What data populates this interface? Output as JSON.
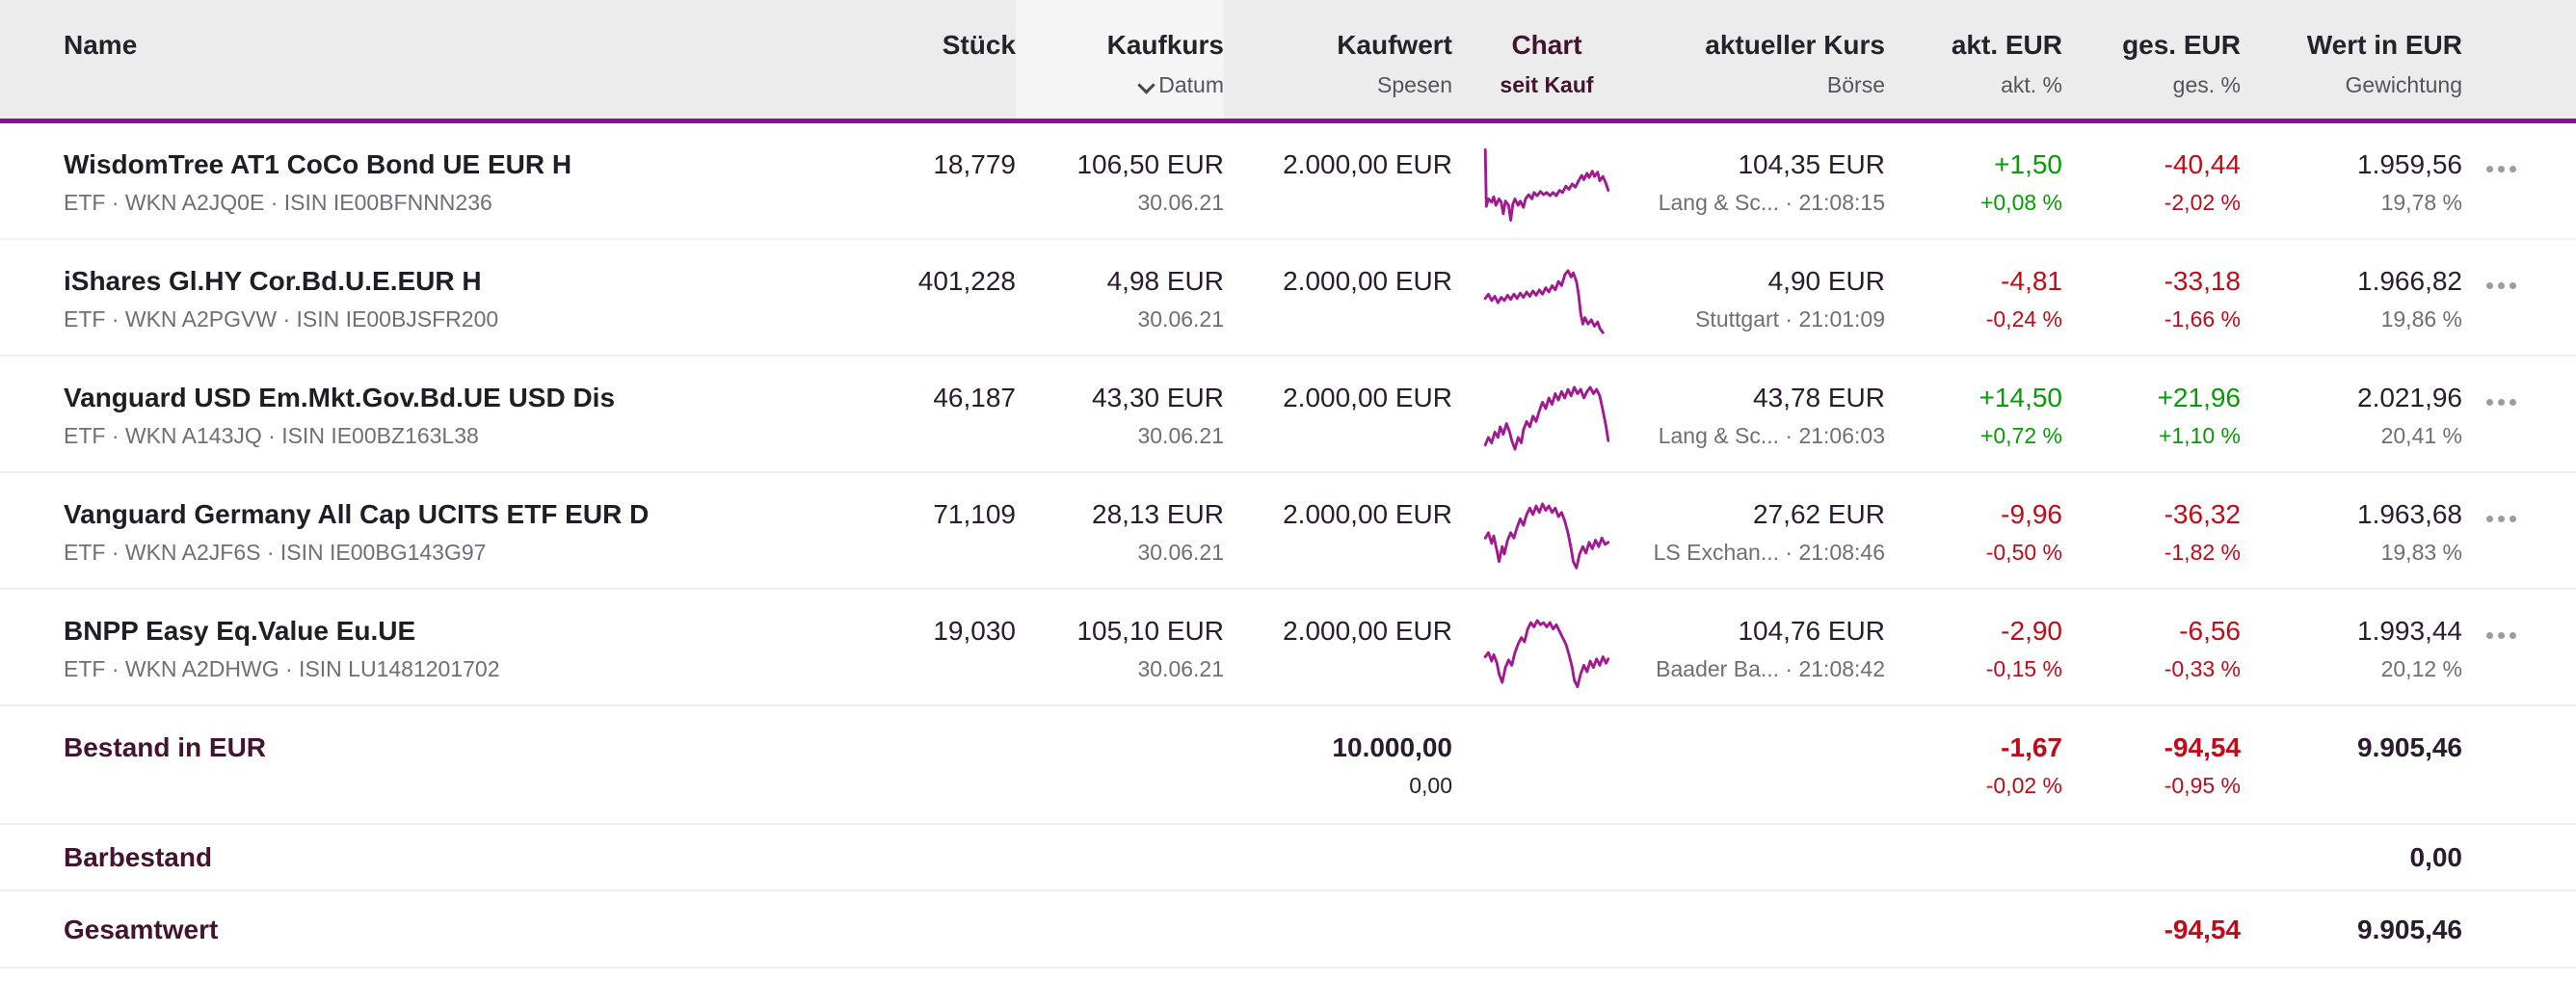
{
  "colors": {
    "header_bg": "#ececec",
    "sorted_column_bg": "#f5f5f5",
    "header_underline": "#8d1094",
    "sparkline": "#a2188f",
    "positive": "#079b07",
    "negative": "#c00b18",
    "accent_dark": "#421430"
  },
  "header": {
    "name": {
      "label": "Name"
    },
    "stueck": {
      "label": "Stück"
    },
    "kaufkurs": {
      "label": "Kaufkurs",
      "sub": "Datum"
    },
    "kaufwert": {
      "label": "Kaufwert",
      "sub": "Spesen"
    },
    "chart": {
      "label": "Chart",
      "sub": "seit Kauf"
    },
    "kurs": {
      "label": "aktueller Kurs",
      "sub": "Börse"
    },
    "akt": {
      "label": "akt. EUR",
      "sub": "akt. %"
    },
    "ges": {
      "label": "ges. EUR",
      "sub": "ges. %"
    },
    "wert": {
      "label": "Wert in EUR",
      "sub": "Gewichtung"
    }
  },
  "rows": [
    {
      "name": "WisdomTree AT1 CoCo Bond UE EUR H",
      "info": "ETF · WKN A2JQ0E · ISIN IE00BFNNN236",
      "stueck": "18,779",
      "kaufkurs": "106,50 EUR",
      "kaufdatum": "30.06.21",
      "kaufwert": "2.000,00 EUR",
      "kurs": "104,35 EUR",
      "boerse": "Lang & Sc... · 21:08:15",
      "akt_eur": "+1,50",
      "akt_pct": "+0,08 %",
      "akt_trend": "up",
      "ges_eur": "-40,44",
      "ges_pct": "-2,02 %",
      "ges_trend": "down",
      "wert": "1.959,56",
      "gewichtung": "19,78 %",
      "sparkline": [
        [
          2,
          4
        ],
        [
          3,
          57
        ],
        [
          5,
          50
        ],
        [
          8,
          53
        ],
        [
          10,
          48
        ],
        [
          12,
          56
        ],
        [
          15,
          50
        ],
        [
          17,
          53
        ],
        [
          19,
          64
        ],
        [
          21,
          52
        ],
        [
          24,
          56
        ],
        [
          26,
          70
        ],
        [
          28,
          55
        ],
        [
          30,
          50
        ],
        [
          33,
          56
        ],
        [
          35,
          52
        ],
        [
          38,
          58
        ],
        [
          40,
          50
        ],
        [
          43,
          46
        ],
        [
          46,
          50
        ],
        [
          48,
          44
        ],
        [
          51,
          47
        ],
        [
          54,
          43
        ],
        [
          57,
          46
        ],
        [
          60,
          44
        ],
        [
          63,
          47
        ],
        [
          66,
          44
        ],
        [
          69,
          47
        ],
        [
          72,
          42
        ],
        [
          75,
          44
        ],
        [
          78,
          38
        ],
        [
          81,
          41
        ],
        [
          84,
          36
        ],
        [
          87,
          39
        ],
        [
          90,
          33
        ],
        [
          93,
          28
        ],
        [
          95,
          32
        ],
        [
          98,
          26
        ],
        [
          100,
          30
        ],
        [
          103,
          24
        ],
        [
          105,
          29
        ],
        [
          108,
          25
        ],
        [
          110,
          33
        ],
        [
          113,
          29
        ],
        [
          116,
          36
        ],
        [
          118,
          42
        ]
      ]
    },
    {
      "name": "iShares Gl.HY Cor.Bd.U.E.EUR H",
      "info": "ETF · WKN A2PGVW · ISIN IE00BJSFR200",
      "stueck": "401,228",
      "kaufkurs": "4,98 EUR",
      "kaufdatum": "30.06.21",
      "kaufwert": "2.000,00 EUR",
      "kurs": "4,90 EUR",
      "boerse": "Stuttgart · 21:01:09",
      "akt_eur": "-4,81",
      "akt_pct": "-0,24 %",
      "akt_trend": "down",
      "ges_eur": "-33,18",
      "ges_pct": "-1,66 %",
      "ges_trend": "down",
      "wert": "1.966,82",
      "gewichtung": "19,86 %",
      "sparkline": [
        [
          2,
          34
        ],
        [
          5,
          30
        ],
        [
          8,
          36
        ],
        [
          11,
          32
        ],
        [
          14,
          38
        ],
        [
          17,
          33
        ],
        [
          20,
          36
        ],
        [
          23,
          31
        ],
        [
          26,
          35
        ],
        [
          29,
          30
        ],
        [
          32,
          34
        ],
        [
          35,
          29
        ],
        [
          38,
          33
        ],
        [
          41,
          28
        ],
        [
          44,
          32
        ],
        [
          47,
          27
        ],
        [
          50,
          31
        ],
        [
          53,
          26
        ],
        [
          56,
          30
        ],
        [
          59,
          24
        ],
        [
          62,
          28
        ],
        [
          65,
          22
        ],
        [
          68,
          26
        ],
        [
          71,
          18
        ],
        [
          74,
          22
        ],
        [
          77,
          12
        ],
        [
          80,
          8
        ],
        [
          83,
          14
        ],
        [
          85,
          10
        ],
        [
          88,
          18
        ],
        [
          90,
          30
        ],
        [
          92,
          48
        ],
        [
          94,
          58
        ],
        [
          96,
          52
        ],
        [
          99,
          58
        ],
        [
          102,
          54
        ],
        [
          105,
          60
        ],
        [
          108,
          56
        ],
        [
          110,
          62
        ],
        [
          113,
          66
        ]
      ]
    },
    {
      "name": "Vanguard USD Em.Mkt.Gov.Bd.UE USD Dis",
      "info": "ETF · WKN A143JQ · ISIN IE00BZ163L38",
      "stueck": "46,187",
      "kaufkurs": "43,30 EUR",
      "kaufdatum": "30.06.21",
      "kaufwert": "2.000,00 EUR",
      "kurs": "43,78 EUR",
      "boerse": "Lang & Sc... · 21:06:03",
      "akt_eur": "+14,50",
      "akt_pct": "+0,72 %",
      "akt_trend": "up",
      "ges_eur": "+21,96",
      "ges_pct": "+1,10 %",
      "ges_trend": "up",
      "wert": "2.021,96",
      "gewichtung": "20,41 %",
      "sparkline": [
        [
          2,
          62
        ],
        [
          5,
          55
        ],
        [
          8,
          60
        ],
        [
          11,
          50
        ],
        [
          14,
          55
        ],
        [
          16,
          45
        ],
        [
          19,
          52
        ],
        [
          22,
          42
        ],
        [
          25,
          50
        ],
        [
          27,
          58
        ],
        [
          30,
          66
        ],
        [
          33,
          55
        ],
        [
          36,
          60
        ],
        [
          38,
          48
        ],
        [
          41,
          40
        ],
        [
          44,
          45
        ],
        [
          47,
          35
        ],
        [
          50,
          40
        ],
        [
          53,
          30
        ],
        [
          56,
          22
        ],
        [
          59,
          28
        ],
        [
          62,
          18
        ],
        [
          65,
          24
        ],
        [
          68,
          14
        ],
        [
          71,
          20
        ],
        [
          74,
          12
        ],
        [
          77,
          18
        ],
        [
          80,
          10
        ],
        [
          83,
          16
        ],
        [
          86,
          8
        ],
        [
          89,
          14
        ],
        [
          92,
          10
        ],
        [
          95,
          18
        ],
        [
          98,
          12
        ],
        [
          101,
          8
        ],
        [
          104,
          14
        ],
        [
          107,
          10
        ],
        [
          110,
          16
        ],
        [
          113,
          30
        ],
        [
          116,
          45
        ],
        [
          118,
          58
        ]
      ]
    },
    {
      "name": "Vanguard Germany All Cap UCITS ETF EUR D",
      "info": "ETF · WKN A2JF6S · ISIN IE00BG143G97",
      "stueck": "71,109",
      "kaufkurs": "28,13 EUR",
      "kaufdatum": "30.06.21",
      "kaufwert": "2.000,00 EUR",
      "kurs": "27,62 EUR",
      "boerse": "LS Exchan... · 21:08:46",
      "akt_eur": "-9,96",
      "akt_pct": "-0,50 %",
      "akt_trend": "down",
      "ges_eur": "-36,32",
      "ges_pct": "-1,82 %",
      "ges_trend": "down",
      "wert": "1.963,68",
      "gewichtung": "19,83 %",
      "sparkline": [
        [
          2,
          40
        ],
        [
          5,
          35
        ],
        [
          8,
          45
        ],
        [
          10,
          38
        ],
        [
          13,
          52
        ],
        [
          15,
          62
        ],
        [
          18,
          48
        ],
        [
          20,
          55
        ],
        [
          23,
          42
        ],
        [
          26,
          35
        ],
        [
          29,
          40
        ],
        [
          32,
          30
        ],
        [
          35,
          22
        ],
        [
          38,
          28
        ],
        [
          41,
          18
        ],
        [
          44,
          12
        ],
        [
          47,
          18
        ],
        [
          50,
          10
        ],
        [
          53,
          16
        ],
        [
          56,
          8
        ],
        [
          59,
          14
        ],
        [
          62,
          10
        ],
        [
          65,
          16
        ],
        [
          68,
          12
        ],
        [
          71,
          20
        ],
        [
          74,
          16
        ],
        [
          77,
          24
        ],
        [
          80,
          35
        ],
        [
          83,
          50
        ],
        [
          85,
          62
        ],
        [
          88,
          68
        ],
        [
          91,
          55
        ],
        [
          94,
          48
        ],
        [
          97,
          54
        ],
        [
          100,
          44
        ],
        [
          103,
          50
        ],
        [
          106,
          42
        ],
        [
          109,
          48
        ],
        [
          112,
          40
        ],
        [
          115,
          46
        ],
        [
          118,
          44
        ]
      ]
    },
    {
      "name": "BNPP Easy Eq.Value Eu.UE",
      "info": "ETF · WKN A2DHWG · ISIN LU1481201702",
      "stueck": "19,030",
      "kaufkurs": "105,10 EUR",
      "kaufdatum": "30.06.21",
      "kaufwert": "2.000,00 EUR",
      "kurs": "104,76 EUR",
      "boerse": "Baader Ba... · 21:08:42",
      "akt_eur": "-2,90",
      "akt_pct": "-0,15 %",
      "akt_trend": "down",
      "ges_eur": "-6,56",
      "ges_pct": "-0,33 %",
      "ges_trend": "down",
      "wert": "1.993,44",
      "gewichtung": "20,12 %",
      "sparkline": [
        [
          2,
          42
        ],
        [
          5,
          38
        ],
        [
          8,
          46
        ],
        [
          10,
          40
        ],
        [
          13,
          48
        ],
        [
          15,
          58
        ],
        [
          18,
          66
        ],
        [
          21,
          52
        ],
        [
          24,
          45
        ],
        [
          27,
          50
        ],
        [
          30,
          38
        ],
        [
          33,
          30
        ],
        [
          36,
          24
        ],
        [
          39,
          28
        ],
        [
          42,
          16
        ],
        [
          45,
          10
        ],
        [
          48,
          14
        ],
        [
          51,
          8
        ],
        [
          54,
          12
        ],
        [
          57,
          10
        ],
        [
          60,
          14
        ],
        [
          63,
          10
        ],
        [
          66,
          16
        ],
        [
          69,
          12
        ],
        [
          72,
          18
        ],
        [
          75,
          24
        ],
        [
          78,
          30
        ],
        [
          81,
          40
        ],
        [
          84,
          52
        ],
        [
          86,
          64
        ],
        [
          89,
          70
        ],
        [
          92,
          58
        ],
        [
          95,
          50
        ],
        [
          98,
          56
        ],
        [
          101,
          46
        ],
        [
          104,
          52
        ],
        [
          107,
          44
        ],
        [
          110,
          50
        ],
        [
          113,
          42
        ],
        [
          116,
          48
        ],
        [
          118,
          44
        ]
      ]
    }
  ],
  "summary": {
    "bestand": {
      "label": "Bestand in EUR",
      "kaufwert": "10.000,00",
      "spesen": "0,00",
      "akt_eur": "-1,67",
      "akt_pct": "-0,02 %",
      "akt_trend": "down",
      "ges_eur": "-94,54",
      "ges_pct": "-0,95 %",
      "ges_trend": "down",
      "wert": "9.905,46"
    },
    "barbestand": {
      "label": "Barbestand",
      "wert": "0,00"
    },
    "gesamtwert": {
      "label": "Gesamtwert",
      "ges_eur": "-94,54",
      "ges_trend": "down",
      "wert": "9.905,46"
    }
  }
}
